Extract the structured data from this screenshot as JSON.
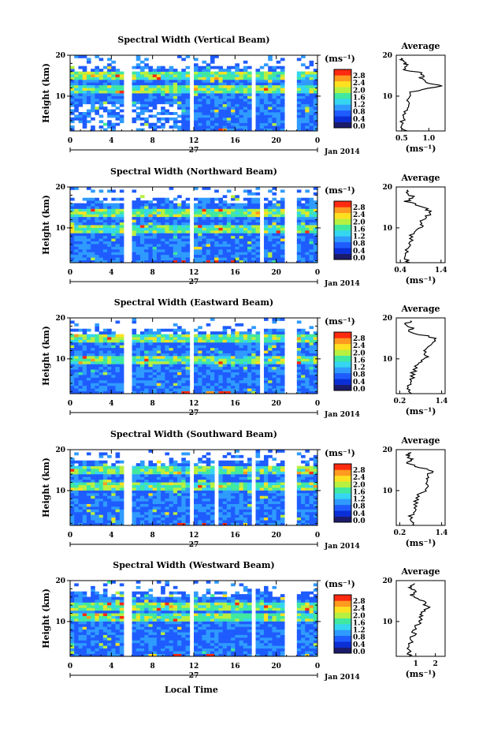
{
  "figure": {
    "xlabel": "Local Time",
    "ylabel": "Height (km)",
    "date_label": "Jan 2014",
    "day_label": "27",
    "x_ticks": [
      "0",
      "4",
      "8",
      "12",
      "16",
      "20",
      "0"
    ],
    "y_ticks": [
      "20",
      "10"
    ],
    "colorbar_unit": "(ms⁻¹)",
    "colorbar_ticks": [
      "2.8",
      "2.4",
      "2.0",
      "1.6",
      "1.2",
      "0.8",
      "0.4",
      "0.0"
    ],
    "avg_title": "Average",
    "avg_xlabel": "(ms⁻¹)"
  },
  "colors": {
    "colormap": [
      "#1b1b6b",
      "#0a2fd6",
      "#1f5cff",
      "#2f9bff",
      "#35d6f0",
      "#40e8a0",
      "#b8f040",
      "#ffe020",
      "#ff9a20",
      "#ff2a10"
    ]
  },
  "chart_data": [
    {
      "type": "heatmap",
      "title": "Spectral Width (Vertical Beam)",
      "x_range_hours": [
        0,
        24
      ],
      "y_range_km": [
        1.5,
        20
      ],
      "color_range": [
        0.0,
        3.0
      ],
      "data_gaps_hours": [
        [
          5.4,
          5.9
        ],
        [
          11.6,
          12.1
        ],
        [
          17.6,
          18.0
        ],
        [
          20.6,
          22.0
        ]
      ],
      "bright_layers_km": [
        15,
        12
      ],
      "average_profile": {
        "x_ticks": [
          "0.5",
          "1.0"
        ],
        "x_range": [
          0.4,
          1.3
        ],
        "height_km": [
          1.5,
          3,
          5,
          7,
          9,
          11,
          12.5,
          13.5,
          14.5,
          15.5,
          16.5,
          17.5,
          18.5,
          19.5
        ],
        "value": [
          0.55,
          0.5,
          0.52,
          0.58,
          0.62,
          0.7,
          1.2,
          0.95,
          0.85,
          0.9,
          0.55,
          0.6,
          0.5,
          0.55
        ]
      }
    },
    {
      "type": "heatmap",
      "title": "Spectral Width (Northward Beam)",
      "x_range_hours": [
        0,
        24
      ],
      "y_range_km": [
        1.5,
        20
      ],
      "color_range": [
        0.0,
        3.0
      ],
      "data_gaps_hours": [
        [
          5.4,
          5.9
        ],
        [
          11.6,
          12.1
        ],
        [
          18.6,
          18.9
        ],
        [
          20.6,
          22.0
        ]
      ],
      "bright_layers_km": [
        14,
        10
      ],
      "average_profile": {
        "x_ticks": [
          "0.4",
          "1.4"
        ],
        "x_range": [
          0.3,
          1.5
        ],
        "height_km": [
          1.5,
          3,
          5,
          7,
          9,
          10.5,
          12,
          13.5,
          15,
          16.5,
          17.5,
          18.5,
          19.5
        ],
        "value": [
          0.6,
          0.55,
          0.6,
          0.65,
          0.7,
          0.95,
          0.9,
          1.2,
          1.0,
          0.55,
          0.7,
          0.6,
          0.65
        ]
      }
    },
    {
      "type": "heatmap",
      "title": "Spectral Width (Eastward Beam)",
      "x_range_hours": [
        0,
        24
      ],
      "y_range_km": [
        1.5,
        20
      ],
      "color_range": [
        0.0,
        3.0
      ],
      "data_gaps_hours": [
        [
          5.4,
          5.9
        ],
        [
          11.6,
          12.1
        ],
        [
          18.3,
          18.6
        ],
        [
          20.6,
          22.0
        ]
      ],
      "bright_layers_km": [
        15,
        10
      ],
      "average_profile": {
        "x_ticks": [
          "0.2",
          "1.4"
        ],
        "x_range": [
          0.1,
          1.5
        ],
        "height_km": [
          1.5,
          3,
          5,
          7,
          9,
          10.5,
          12,
          13.5,
          15,
          16.5,
          17.5,
          18.5,
          19.5
        ],
        "value": [
          0.5,
          0.45,
          0.55,
          0.6,
          0.75,
          0.95,
          0.9,
          1.05,
          1.25,
          0.5,
          0.55,
          0.4,
          0.5
        ]
      }
    },
    {
      "type": "heatmap",
      "title": "Spectral Width (Southward Beam)",
      "x_range_hours": [
        0,
        24
      ],
      "y_range_km": [
        1.5,
        20
      ],
      "color_range": [
        0.0,
        3.0
      ],
      "data_gaps_hours": [
        [
          5.4,
          5.9
        ],
        [
          11.6,
          12.1
        ],
        [
          14.2,
          14.4
        ],
        [
          17.6,
          18.0
        ],
        [
          20.6,
          22.0
        ]
      ],
      "bright_layers_km": [
        15,
        11
      ],
      "average_profile": {
        "x_ticks": [
          "0.2",
          "1.4"
        ],
        "x_range": [
          0.1,
          1.5
        ],
        "height_km": [
          1.5,
          3,
          5,
          7,
          9,
          10.5,
          12,
          13.5,
          15,
          16.5,
          17.5,
          18.5,
          19.5
        ],
        "value": [
          0.55,
          0.5,
          0.6,
          0.65,
          0.75,
          1.0,
          0.95,
          1.0,
          1.1,
          0.45,
          0.55,
          0.4,
          0.5
        ]
      }
    },
    {
      "type": "heatmap",
      "title": "Spectral Width (Westward Beam)",
      "x_range_hours": [
        0,
        24
      ],
      "y_range_km": [
        1.5,
        20
      ],
      "color_range": [
        0.0,
        3.0
      ],
      "data_gaps_hours": [
        [
          5.4,
          5.9
        ],
        [
          11.6,
          12.1
        ],
        [
          17.6,
          18.0
        ],
        [
          20.6,
          22.0
        ]
      ],
      "bright_layers_km": [
        14,
        11
      ],
      "average_profile": {
        "x_ticks": [
          "1",
          "2"
        ],
        "x_range": [
          0.0,
          2.5
        ],
        "height_km": [
          1.5,
          3,
          5,
          7,
          9,
          10.5,
          12,
          13.5,
          15,
          16.5,
          17.5,
          18.5,
          19.5
        ],
        "value": [
          0.7,
          0.6,
          0.75,
          0.9,
          1.0,
          1.3,
          1.2,
          1.6,
          1.4,
          0.8,
          1.0,
          0.7,
          0.9
        ]
      }
    }
  ]
}
